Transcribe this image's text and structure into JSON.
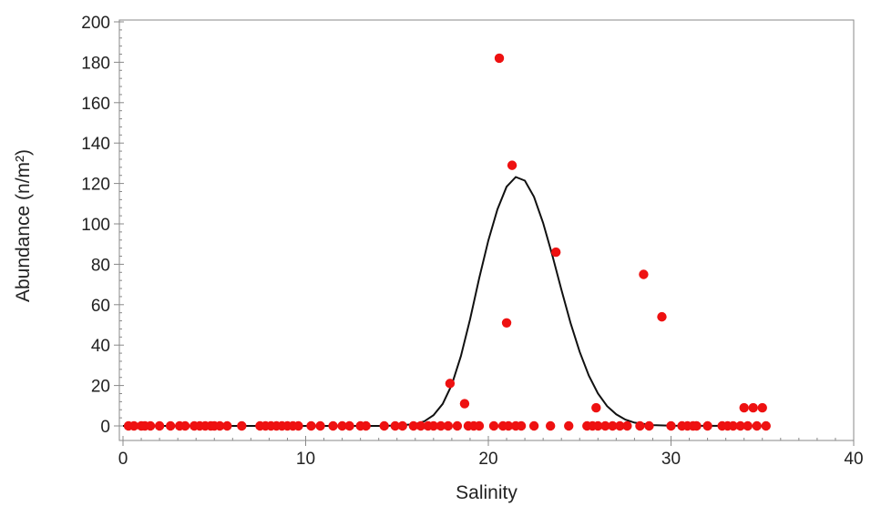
{
  "chart_data": {
    "type": "scatter",
    "title": "",
    "xlabel": "Salinity",
    "ylabel": "Abundance (n/m²)",
    "xlim": [
      0,
      40
    ],
    "ylim": [
      0,
      200
    ],
    "x_ticks": [
      0,
      10,
      20,
      30,
      40
    ],
    "y_ticks": [
      0,
      20,
      40,
      60,
      80,
      100,
      120,
      140,
      160,
      180,
      200
    ],
    "grid": false,
    "legend": "none",
    "colors": {
      "points": "#ee1111",
      "curve": "#111111",
      "axes": "#888888"
    },
    "series": [
      {
        "kind": "points",
        "points": [
          [
            0.3,
            0
          ],
          [
            0.6,
            0
          ],
          [
            1.0,
            0
          ],
          [
            1.2,
            0
          ],
          [
            1.5,
            0
          ],
          [
            2.0,
            0
          ],
          [
            2.6,
            0
          ],
          [
            3.1,
            0
          ],
          [
            3.4,
            0
          ],
          [
            3.9,
            0
          ],
          [
            4.2,
            0
          ],
          [
            4.5,
            0
          ],
          [
            4.8,
            0
          ],
          [
            5.0,
            0
          ],
          [
            5.3,
            0
          ],
          [
            5.7,
            0
          ],
          [
            6.5,
            0
          ],
          [
            7.5,
            0
          ],
          [
            7.8,
            0
          ],
          [
            8.1,
            0
          ],
          [
            8.4,
            0
          ],
          [
            8.7,
            0
          ],
          [
            9.0,
            0
          ],
          [
            9.3,
            0
          ],
          [
            9.6,
            0
          ],
          [
            10.3,
            0
          ],
          [
            10.8,
            0
          ],
          [
            11.5,
            0
          ],
          [
            12.0,
            0
          ],
          [
            12.4,
            0
          ],
          [
            13.0,
            0
          ],
          [
            13.3,
            0
          ],
          [
            14.3,
            0
          ],
          [
            14.9,
            0
          ],
          [
            15.3,
            0
          ],
          [
            15.9,
            0
          ],
          [
            16.3,
            0
          ],
          [
            16.7,
            0
          ],
          [
            17.0,
            0
          ],
          [
            17.4,
            0
          ],
          [
            17.8,
            0
          ],
          [
            17.9,
            21
          ],
          [
            18.3,
            0
          ],
          [
            18.7,
            11
          ],
          [
            18.9,
            0
          ],
          [
            19.2,
            0
          ],
          [
            19.5,
            0
          ],
          [
            20.3,
            0
          ],
          [
            20.6,
            182
          ],
          [
            20.8,
            0
          ],
          [
            21.0,
            51
          ],
          [
            21.1,
            0
          ],
          [
            21.3,
            129
          ],
          [
            21.5,
            0
          ],
          [
            21.8,
            0
          ],
          [
            22.5,
            0
          ],
          [
            23.4,
            0
          ],
          [
            23.7,
            86
          ],
          [
            24.4,
            0
          ],
          [
            25.4,
            0
          ],
          [
            25.7,
            0
          ],
          [
            25.9,
            9
          ],
          [
            26.0,
            0
          ],
          [
            26.4,
            0
          ],
          [
            26.8,
            0
          ],
          [
            27.2,
            0
          ],
          [
            27.6,
            0
          ],
          [
            28.3,
            0
          ],
          [
            28.5,
            75
          ],
          [
            28.8,
            0
          ],
          [
            29.5,
            54
          ],
          [
            30.0,
            0
          ],
          [
            30.6,
            0
          ],
          [
            30.9,
            0
          ],
          [
            31.2,
            0
          ],
          [
            31.4,
            0
          ],
          [
            32.0,
            0
          ],
          [
            32.8,
            0
          ],
          [
            33.1,
            0
          ],
          [
            33.4,
            0
          ],
          [
            33.8,
            0
          ],
          [
            34.0,
            9
          ],
          [
            34.2,
            0
          ],
          [
            34.5,
            9
          ],
          [
            34.7,
            0
          ],
          [
            35.0,
            9
          ],
          [
            35.2,
            0
          ]
        ]
      },
      {
        "kind": "curve",
        "points": [
          [
            0,
            0
          ],
          [
            14,
            0
          ],
          [
            15,
            0.2
          ],
          [
            16,
            0.9
          ],
          [
            16.5,
            2.3
          ],
          [
            17,
            5.3
          ],
          [
            17.5,
            10.9
          ],
          [
            18,
            20.4
          ],
          [
            18.5,
            34.6
          ],
          [
            19,
            52.9
          ],
          [
            19.5,
            73.2
          ],
          [
            20,
            91.8
          ],
          [
            20.5,
            107.2
          ],
          [
            21,
            118.4
          ],
          [
            21.5,
            123.2
          ],
          [
            22,
            121.4
          ],
          [
            22.5,
            113.4
          ],
          [
            23,
            100.5
          ],
          [
            23.5,
            84.5
          ],
          [
            24,
            67.4
          ],
          [
            24.5,
            51.0
          ],
          [
            25,
            36.6
          ],
          [
            25.5,
            24.9
          ],
          [
            26,
            16.1
          ],
          [
            26.5,
            9.8
          ],
          [
            27,
            5.7
          ],
          [
            27.5,
            3.1
          ],
          [
            28,
            1.6
          ],
          [
            29,
            0.4
          ],
          [
            30,
            0.1
          ],
          [
            35,
            0
          ]
        ]
      }
    ]
  }
}
